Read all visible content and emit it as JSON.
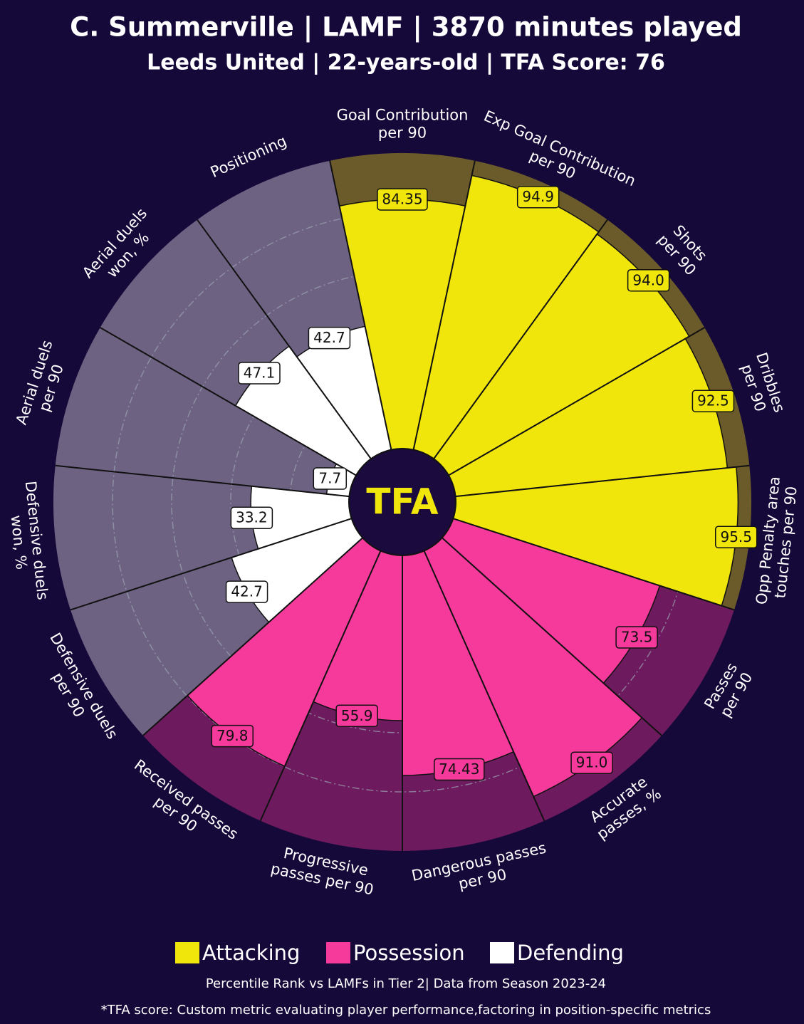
{
  "chart_data": {
    "type": "pizza",
    "title": "C. Summerville | LAMF | 3870 minutes played",
    "subtitle": "Leeds United | 22-years-old | TFA Score: 76",
    "center_label": "TFA",
    "categories": [
      [
        "Goal Contribution",
        "per 90"
      ],
      [
        "Exp Goal Contribution",
        "per 90"
      ],
      [
        "Shots",
        "per 90"
      ],
      [
        "Dribbles",
        "per 90"
      ],
      [
        "Opp Penalty area",
        "touches per 90"
      ],
      [
        "Passes",
        "per 90"
      ],
      [
        "Accurate",
        "passes, %"
      ],
      [
        "Dangerous passes",
        "per 90"
      ],
      [
        "Progressive",
        "passes per 90"
      ],
      [
        "Received passes",
        "per 90"
      ],
      [
        "Defensive duels",
        "per 90"
      ],
      [
        "Defensive duels",
        "won, %"
      ],
      [
        "Aerial duels",
        "per 90"
      ],
      [
        "Aerial duels",
        "won, %"
      ],
      [
        "Positioning"
      ]
    ],
    "rlim": [
      0,
      100
    ],
    "rgrid": [
      20,
      40,
      60,
      80
    ],
    "series": [
      {
        "name": "Attacking",
        "color": "#f0e60c",
        "background_color": "#6b5a2a",
        "values": [
          84.35,
          94.9,
          94.0,
          92.5,
          95.5,
          null,
          null,
          null,
          null,
          null,
          null,
          null,
          null,
          null,
          null
        ],
        "value_labels": [
          "84.35",
          "94.9",
          "94.0",
          "92.5",
          "95.5",
          null,
          null,
          null,
          null,
          null,
          null,
          null,
          null,
          null,
          null
        ]
      },
      {
        "name": "Possession",
        "color": "#f53a9c",
        "background_color": "#6e1a5e",
        "values": [
          null,
          null,
          null,
          null,
          null,
          73.5,
          91.0,
          74.43,
          55.9,
          79.8,
          null,
          null,
          null,
          null,
          null
        ],
        "value_labels": [
          null,
          null,
          null,
          null,
          null,
          "73.5",
          "91.0",
          "74.43",
          "55.9",
          "79.8",
          null,
          null,
          null,
          null,
          null
        ]
      },
      {
        "name": "Defending",
        "color": "#ffffff",
        "background_color": "#6e6283",
        "values": [
          null,
          null,
          null,
          null,
          null,
          null,
          null,
          null,
          null,
          null,
          42.7,
          33.2,
          7.7,
          47.1,
          42.7
        ],
        "value_labels": [
          null,
          null,
          null,
          null,
          null,
          null,
          null,
          null,
          null,
          null,
          "42.7",
          "33.2",
          "7.7",
          "47.1",
          "42.7"
        ]
      }
    ],
    "footnote": "Percentile Rank vs LAMFs in Tier 2| Data from Season 2023-24",
    "footnote2": "*TFA score: Custom metric evaluating player performance,factoring in position-specific metrics"
  }
}
